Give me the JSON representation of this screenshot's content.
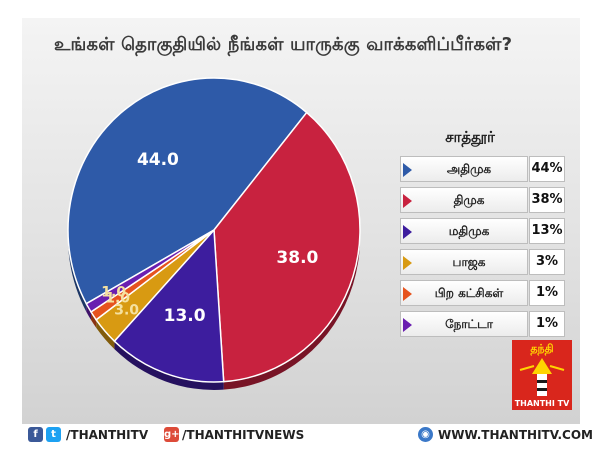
{
  "chart_data": {
    "type": "pie",
    "title": "உங்கள் தொகுதியில் நீங்கள் யாருக்கு வாக்களிப்பீர்கள்?",
    "legend_title": "சாத்தூர்",
    "slices": [
      {
        "label": "அதிமுக",
        "value": 44.0,
        "display": "44.0",
        "percent": "44%",
        "color": "#2e5aa8"
      },
      {
        "label": "திமுக",
        "value": 38.0,
        "display": "38.0",
        "percent": "38%",
        "color": "#c8223f"
      },
      {
        "label": "மதிமுக",
        "value": 13.0,
        "display": "13.0",
        "percent": "13%",
        "color": "#3d1d9e"
      },
      {
        "label": "பாஜக",
        "value": 3.0,
        "display": "3.0",
        "percent": "3%",
        "color": "#d89a12"
      },
      {
        "label": "பிற கட்சிகள்",
        "value": 1.0,
        "display": "1.0",
        "percent": "1%",
        "color": "#e6531e"
      },
      {
        "label": "நோட்டா",
        "value": 1.0,
        "display": "1.0",
        "percent": "1%",
        "color": "#6a1fb0"
      }
    ],
    "legend_placement": "right"
  },
  "logo": {
    "name": "தந்தி",
    "tagline": "THANTHI TV",
    "colors": {
      "background": "#d9261c",
      "name": "#ffd400"
    }
  },
  "footer": {
    "social": [
      {
        "icon": "facebook-icon",
        "glyph": "f",
        "color": "#3b5998"
      },
      {
        "icon": "twitter-icon",
        "glyph": "t",
        "color": "#1da1f2"
      }
    ],
    "handle": "/THANTHITV",
    "gplus": {
      "icon": "google-plus-icon",
      "glyph": "g+",
      "color": "#dd4b39"
    },
    "news_handle": "/THANTHITVNEWS",
    "globe": {
      "icon": "globe-icon",
      "glyph": "◉",
      "color": "#3a78c8"
    },
    "website": "WWW.THANTHITV.COM"
  }
}
